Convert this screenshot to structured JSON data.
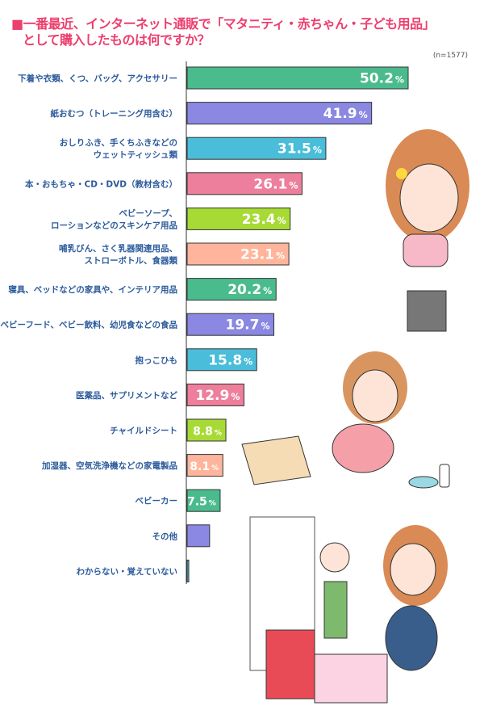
{
  "title": [
    "■一番最近、インターネット通販で「マタニティ・赤ちゃん・子ども用品」",
    "として購入したものは何ですか？"
  ],
  "sample_note": "(n=1577)",
  "chart_data": {
    "type": "bar",
    "orientation": "horizontal",
    "unit": "%",
    "categories": [
      [
        "下着や衣類、くつ、バッグ、アクセサリー"
      ],
      [
        "紙おむつ（トレーニング用含む）"
      ],
      [
        "おしりふき、手くちふきなどの",
        "ウェットティッシュ類"
      ],
      [
        "本・おもちゃ・CD・DVD（教材含む）"
      ],
      [
        "ベビーソープ、",
        "ローションなどのスキンケア用品"
      ],
      [
        "哺乳びん、さく乳器関連用品、",
        "ストローボトル、食器類"
      ],
      [
        "寝具、ベッドなどの家具や、インテリア用品"
      ],
      [
        "ベビーフード、ベビー飲料、幼児食などの食品"
      ],
      [
        "抱っこひも"
      ],
      [
        "医薬品、サプリメントなど"
      ],
      [
        "チャイルドシート"
      ],
      [
        "加湿器、空気洗浄機などの家電製品"
      ],
      [
        "ベビーカー"
      ],
      [
        "その他"
      ],
      [
        "わからない・覚えていない"
      ]
    ],
    "values": [
      50.2,
      41.9,
      31.5,
      26.1,
      23.4,
      23.1,
      20.2,
      19.7,
      15.8,
      12.9,
      8.8,
      8.1,
      7.5,
      5.1,
      0.3
    ],
    "colors": [
      "#4abb8c",
      "#8a88e2",
      "#49bdd9",
      "#ee7f9c",
      "#a8da36",
      "#ffb59b",
      "#4abb8c",
      "#8a88e2",
      "#49bdd9",
      "#ee7f9c",
      "#a8da36",
      "#ffb59b",
      "#4abb8c",
      "#8a88e2",
      "#49bdd9"
    ],
    "xlim": [
      0,
      50.2
    ],
    "grid": false,
    "legend": "none"
  }
}
